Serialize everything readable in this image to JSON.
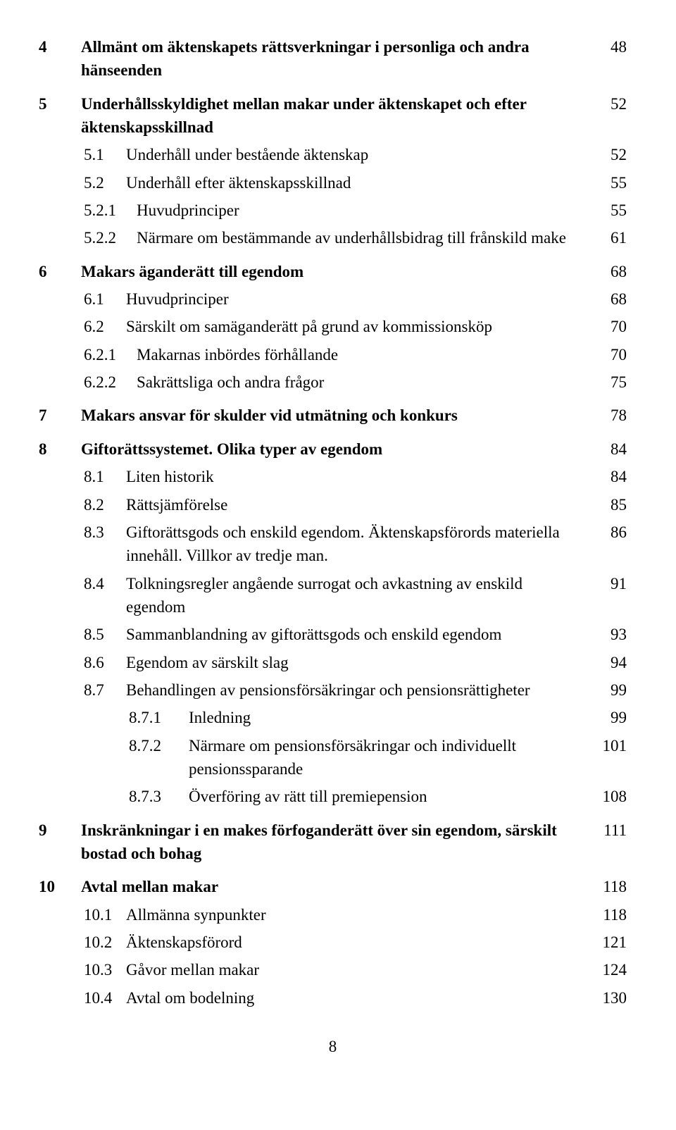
{
  "lines": [
    {
      "level": 0,
      "bold": true,
      "num": "4",
      "text": "Allmänt om äktenskapets rättsverkningar i personliga och andra hänseenden",
      "page": "48",
      "gap": false
    },
    {
      "level": 0,
      "bold": true,
      "num": "5",
      "text": "Underhållsskyldighet mellan makar under äktenskapet och efter äktenskapsskillnad",
      "page": "52",
      "gap": true
    },
    {
      "level": 1,
      "bold": false,
      "num": "5.1",
      "text": "Underhåll under bestående äktenskap",
      "page": "52",
      "gap": false
    },
    {
      "level": 1,
      "bold": false,
      "num": "5.2",
      "text": "Underhåll efter äktenskapsskillnad",
      "page": "55",
      "gap": false
    },
    {
      "level": 2,
      "bold": false,
      "num": "5.2.1",
      "text": "Huvudprinciper",
      "page": "55",
      "gap": false
    },
    {
      "level": 2,
      "bold": false,
      "num": "5.2.2",
      "text": "Närmare om bestämmande av underhållsbidrag till frånskild make",
      "page": "61",
      "gap": false
    },
    {
      "level": 0,
      "bold": true,
      "num": "6",
      "text": "Makars äganderätt till egendom",
      "page": "68",
      "gap": true
    },
    {
      "level": 1,
      "bold": false,
      "num": "6.1",
      "text": "Huvudprinciper",
      "page": "68",
      "gap": false
    },
    {
      "level": 1,
      "bold": false,
      "num": "6.2",
      "text": "Särskilt om samäganderätt på grund av kommissionsköp",
      "page": "70",
      "gap": false
    },
    {
      "level": 2,
      "bold": false,
      "num": "6.2.1",
      "text": "Makarnas inbördes förhållande",
      "page": "70",
      "gap": false
    },
    {
      "level": 2,
      "bold": false,
      "num": "6.2.2",
      "text": "Sakrättsliga och andra frågor",
      "page": "75",
      "gap": false
    },
    {
      "level": 0,
      "bold": true,
      "num": "7",
      "text": "Makars ansvar för skulder vid utmätning och konkurs",
      "page": "78",
      "gap": true
    },
    {
      "level": 0,
      "bold": true,
      "num": "8",
      "text": "Giftorättssystemet. Olika typer av egendom",
      "page": "84",
      "gap": true
    },
    {
      "level": 1,
      "bold": false,
      "num": "8.1",
      "text": "Liten historik",
      "page": "84",
      "gap": false
    },
    {
      "level": 1,
      "bold": false,
      "num": "8.2",
      "text": "Rättsjämförelse",
      "page": "85",
      "gap": false
    },
    {
      "level": 1,
      "bold": false,
      "num": "8.3",
      "text": "Giftorättsgods och enskild egendom. Äktenskapsförords materiella innehåll. Villkor av tredje man.",
      "page": "86",
      "gap": false
    },
    {
      "level": 1,
      "bold": false,
      "num": "8.4",
      "text": "Tolkningsregler angående surrogat och avkastning av enskild egendom",
      "page": "91",
      "gap": false
    },
    {
      "level": 1,
      "bold": false,
      "num": "8.5",
      "text": "Sammanblandning av giftorättsgods och enskild egendom",
      "page": "93",
      "gap": false
    },
    {
      "level": 1,
      "bold": false,
      "num": "8.6",
      "text": "Egendom av särskilt slag",
      "page": "94",
      "gap": false
    },
    {
      "level": 1,
      "bold": false,
      "num": "8.7",
      "text": "Behandlingen av pensionsförsäkringar och pensionsrättigheter",
      "page": "99",
      "gap": false
    },
    {
      "level": 3,
      "bold": false,
      "num": "8.7.1",
      "text": "Inledning",
      "page": "99",
      "gap": false
    },
    {
      "level": 3,
      "bold": false,
      "num": "8.7.2",
      "text": "Närmare om pensionsförsäkringar och individuellt pensionssparande",
      "page": "101",
      "gap": false
    },
    {
      "level": 3,
      "bold": false,
      "num": "8.7.3",
      "text": "Överföring av rätt till premiepension",
      "page": "108",
      "gap": false
    },
    {
      "level": 0,
      "bold": true,
      "num": "9",
      "text": "Inskränkningar i en makes förfoganderätt över sin egendom, särskilt bostad och bohag",
      "page": "111",
      "gap": true
    },
    {
      "level": 0,
      "bold": true,
      "num": "10",
      "text": "Avtal mellan makar",
      "page": "118",
      "gap": true
    },
    {
      "level": 1,
      "bold": false,
      "num": "10.1",
      "text": "Allmänna synpunkter",
      "page": "118",
      "gap": false
    },
    {
      "level": 1,
      "bold": false,
      "num": "10.2",
      "text": "Äktenskapsförord",
      "page": "121",
      "gap": false
    },
    {
      "level": 1,
      "bold": false,
      "num": "10.3",
      "text": "Gåvor mellan makar",
      "page": "124",
      "gap": false
    },
    {
      "level": 1,
      "bold": false,
      "num": "10.4",
      "text": "Avtal om bodelning",
      "page": "130",
      "gap": false
    }
  ],
  "page_number": "8"
}
